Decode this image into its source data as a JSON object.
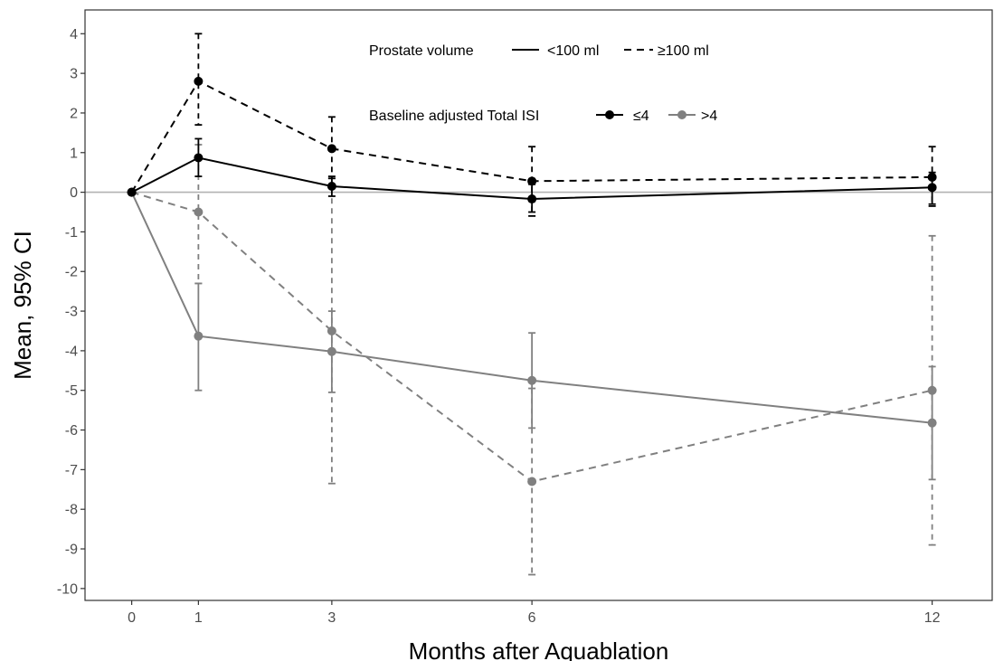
{
  "chart_data": {
    "type": "line",
    "xlabel": "Months after Aquablation",
    "ylabel": "Mean, 95% CI",
    "x_ticks": [
      0,
      1,
      3,
      6,
      12
    ],
    "y_ticks": [
      4,
      3,
      2,
      1,
      0,
      -1,
      -2,
      -3,
      -4,
      -5,
      -6,
      -7,
      -8,
      -9,
      -10
    ],
    "xlim": [
      -0.7,
      12.9
    ],
    "ylim": [
      -10.3,
      4.6
    ],
    "reference_line_y": 0,
    "grid": false,
    "legend": {
      "placement": "top-center",
      "volume_title": "Prostate volume",
      "volume_items": [
        {
          "label": "<100 ml",
          "linetype": "solid"
        },
        {
          "label": "≥100 ml",
          "linetype": "dashed"
        }
      ],
      "isi_title": "Baseline adjusted Total ISI",
      "isi_items": [
        {
          "label": "≤4",
          "color": "#000000"
        },
        {
          "label": ">4",
          "color": "#808080"
        }
      ]
    },
    "series": [
      {
        "volume": "<100 ml",
        "isi": "≤4",
        "linetype": "solid",
        "color": "#000000",
        "x": [
          0,
          1,
          3,
          6,
          12
        ],
        "y": [
          0,
          0.87,
          0.15,
          -0.17,
          0.12
        ],
        "ci_low": [
          null,
          0.4,
          -0.1,
          -0.5,
          -0.3
        ],
        "ci_high": [
          null,
          1.35,
          0.4,
          0.2,
          0.5
        ]
      },
      {
        "volume": "≥100 ml",
        "isi": "≤4",
        "linetype": "dashed",
        "color": "#000000",
        "x": [
          0,
          1,
          3,
          6,
          12
        ],
        "y": [
          0,
          2.8,
          1.1,
          0.28,
          0.38
        ],
        "ci_low": [
          null,
          1.7,
          0.35,
          -0.6,
          -0.35
        ],
        "ci_high": [
          null,
          4.0,
          1.9,
          1.15,
          1.15
        ]
      },
      {
        "volume": "<100 ml",
        "isi": ">4",
        "linetype": "solid",
        "color": "#808080",
        "x": [
          0,
          1,
          3,
          6,
          12
        ],
        "y": [
          0,
          -3.63,
          -4.02,
          -4.75,
          -5.82
        ],
        "ci_low": [
          null,
          -5.0,
          -5.05,
          -5.95,
          -7.25
        ],
        "ci_high": [
          null,
          -2.3,
          -3.0,
          -3.55,
          -4.4
        ]
      },
      {
        "volume": "≥100 ml",
        "isi": ">4",
        "linetype": "dashed",
        "color": "#808080",
        "x": [
          0,
          1,
          3,
          6,
          12
        ],
        "y": [
          0,
          -0.5,
          -3.5,
          -7.3,
          -5.0
        ],
        "ci_low": [
          null,
          -2.3,
          -7.35,
          -9.65,
          -8.9
        ],
        "ci_high": [
          null,
          1.2,
          0.35,
          -4.95,
          -1.1
        ]
      }
    ]
  }
}
